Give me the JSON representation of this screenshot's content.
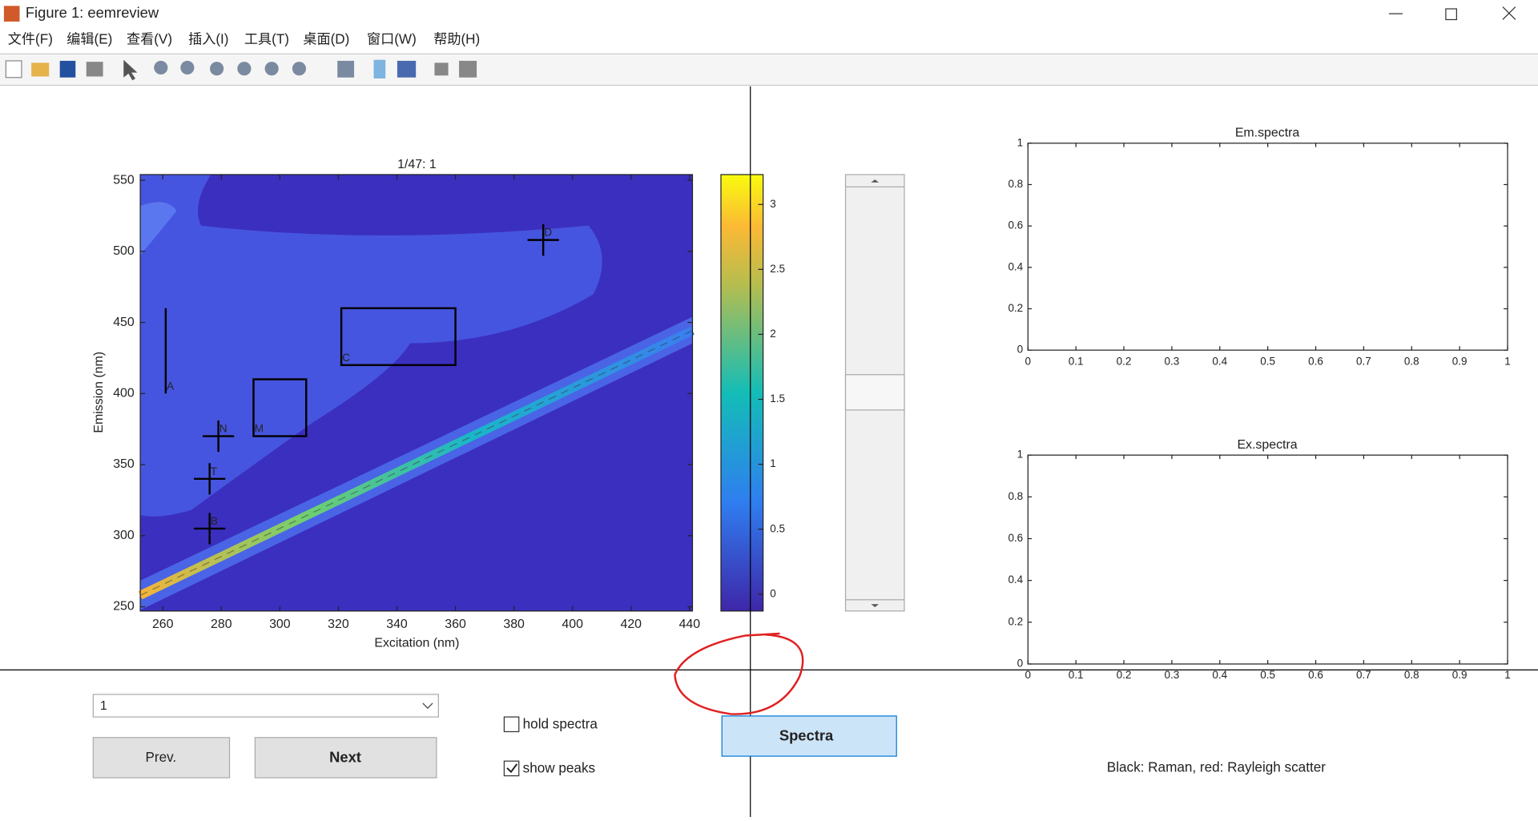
{
  "window": {
    "title": "Figure 1: eemreview"
  },
  "menu": [
    "文件(F)",
    "编辑(E)",
    "查看(V)",
    "插入(I)",
    "工具(T)",
    "桌面(D)",
    "窗口(W)",
    "帮助(H)"
  ],
  "main_plot": {
    "title": "1/47:  1",
    "xlabel": "Excitation (nm)",
    "ylabel": "Emission (nm)",
    "xlim": [
      252.3,
      441
    ],
    "ylim": [
      247,
      554
    ],
    "xticks": [
      260,
      280,
      300,
      320,
      340,
      360,
      380,
      400,
      420,
      440
    ],
    "yticks": [
      250,
      300,
      350,
      400,
      450,
      500,
      550
    ],
    "crosses": [
      {
        "label": "D",
        "x": 390,
        "y": 508
      },
      {
        "label": "N",
        "x": 279,
        "y": 370
      },
      {
        "label": "T",
        "x": 276,
        "y": 340
      },
      {
        "label": "B",
        "x": 276,
        "y": 305
      }
    ],
    "lines": [
      {
        "label": "A",
        "x": 261,
        "y": [
          400,
          460
        ]
      }
    ],
    "boxes": [
      {
        "label": "C",
        "x": [
          321,
          360
        ],
        "y": [
          420,
          460
        ]
      },
      {
        "label": "M",
        "x": [
          291,
          309
        ],
        "y": [
          370,
          410
        ]
      }
    ]
  },
  "colorbar": {
    "lim": [
      -0.13,
      3.23
    ],
    "ticks": [
      0,
      0.5,
      1,
      1.5,
      2,
      2.5,
      3
    ]
  },
  "em_axes": {
    "title": "Em.spectra",
    "xlim": [
      0,
      1
    ],
    "ylim": [
      0,
      1
    ],
    "xticks": [
      0,
      0.1,
      0.2,
      0.3,
      0.4,
      0.5,
      0.6,
      0.7,
      0.8,
      0.9,
      1
    ],
    "yticks": [
      0,
      0.2,
      0.4,
      0.6,
      0.8,
      1
    ]
  },
  "ex_axes": {
    "title": "Ex.spectra",
    "xlim": [
      0,
      1
    ],
    "ylim": [
      0,
      1
    ],
    "xticks": [
      0,
      0.1,
      0.2,
      0.3,
      0.4,
      0.5,
      0.6,
      0.7,
      0.8,
      0.9,
      1
    ],
    "yticks": [
      0,
      0.2,
      0.4,
      0.6,
      0.8,
      1
    ]
  },
  "controls": {
    "dropdown": "1",
    "prev": "Prev.",
    "next": "Next",
    "spectra": "Spectra",
    "hold_spectra": {
      "label": "hold spectra",
      "checked": false
    },
    "show_peaks": {
      "label": "show peaks",
      "checked": true
    },
    "note": "Black: Raman, red: Rayleigh scatter"
  }
}
